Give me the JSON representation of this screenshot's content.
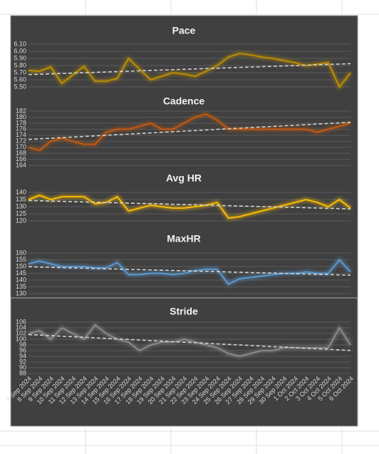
{
  "chart_data": [
    {
      "type": "line",
      "title": "Pace",
      "series": [
        {
          "color": "#bf9000",
          "values": [
            5.73,
            5.72,
            5.78,
            5.55,
            5.67,
            5.79,
            5.58,
            5.58,
            5.62,
            5.9,
            5.75,
            5.6,
            5.65,
            5.7,
            5.68,
            5.65,
            5.72,
            5.8,
            5.92,
            5.97,
            5.95,
            5.92,
            5.9,
            5.87,
            5.84,
            5.8,
            5.82,
            5.84,
            5.5,
            5.7
          ]
        }
      ],
      "ylim": [
        5.5,
        6.1
      ],
      "yticks": [
        {
          "value": 5.5,
          "label": "5.50"
        },
        {
          "value": 5.6,
          "label": "5.60"
        },
        {
          "value": 5.7,
          "label": "5.70"
        },
        {
          "value": 5.8,
          "label": "5.80"
        },
        {
          "value": 5.9,
          "label": "5.90"
        },
        {
          "value": 6.0,
          "label": "6.00"
        },
        {
          "value": 6.1,
          "label": "6.10"
        }
      ],
      "grid": true,
      "trendline": true
    },
    {
      "type": "line",
      "title": "Cadence",
      "series": [
        {
          "color": "#c55a11",
          "values": [
            170,
            169,
            172,
            173,
            172,
            171,
            171,
            175,
            176,
            176,
            177,
            178,
            176,
            176,
            178,
            180,
            181,
            179,
            176,
            176,
            176,
            176,
            176,
            176,
            176,
            176,
            175,
            176,
            177,
            178
          ]
        }
      ],
      "ylim": [
        164,
        182
      ],
      "yticks": [
        164,
        166,
        168,
        170,
        172,
        174,
        176,
        178,
        180,
        182
      ],
      "grid": true,
      "trendline": true
    },
    {
      "type": "line",
      "title": "Avg HR",
      "series": [
        {
          "color": "#ffc000",
          "values": [
            135,
            138,
            135,
            137,
            137,
            137,
            132,
            133,
            137,
            127,
            129,
            131,
            130,
            129,
            129,
            130,
            131,
            133,
            122,
            123,
            125,
            127,
            129,
            131,
            133,
            135,
            133,
            130,
            135,
            129
          ]
        }
      ],
      "ylim": [
        120,
        140
      ],
      "yticks": [
        120,
        125,
        130,
        135,
        140
      ],
      "grid": true,
      "trendline": true
    },
    {
      "type": "line",
      "title": "MaxHR",
      "series": [
        {
          "color": "#5b9bd5",
          "values": [
            152,
            154,
            152,
            150,
            150,
            150,
            149,
            149,
            153,
            144,
            144,
            145,
            145,
            144,
            145,
            147,
            148,
            148,
            137,
            141,
            142,
            143,
            144,
            145,
            145,
            146,
            145,
            145,
            155,
            146
          ]
        }
      ],
      "ylim": [
        130,
        160
      ],
      "yticks": [
        130,
        135,
        140,
        145,
        150,
        155,
        160
      ],
      "grid": true,
      "trendline": true
    },
    {
      "type": "line",
      "title": "Stride",
      "categories": [
        "7 Sep 2024",
        "8 Sep 2024",
        "9 Sep 2024",
        "10 Sep 2024",
        "11 Sep 2024",
        "12 Sep 2024",
        "13 Sep 2024",
        "14 Sep 2024",
        "15 Sep 2024",
        "16 Sep 2024",
        "17 Sep 2024",
        "18 Sep 2024",
        "19 Sep 2024",
        "20 Sep 2024",
        "21 Sep 2024",
        "22 Sep 2024",
        "23 Sep 2024",
        "24 Sep 2024",
        "25 Sep 2024",
        "26 Sep 2024",
        "27 Sep 2024",
        "28 Sep 2024",
        "29 Sep 2024",
        "30 Sep 2024",
        "1 Oct 2024",
        "2 Oct 2024",
        "3 Oct 2024",
        "4 Oct 2024",
        "5 Oct 2024",
        "6 Oct 2024"
      ],
      "series": [
        {
          "color": "#8c8c8c",
          "values": [
            102,
            103,
            100,
            104,
            102,
            100,
            105,
            102,
            100,
            99,
            96,
            98,
            99,
            99,
            100,
            99,
            98,
            97,
            95,
            94,
            95,
            96,
            96,
            97,
            97,
            97,
            97,
            97,
            104,
            98
          ]
        }
      ],
      "ylim": [
        88,
        106
      ],
      "yticks": [
        88,
        90,
        92,
        94,
        96,
        98,
        100,
        102,
        104,
        106
      ],
      "grid": true,
      "trendline": true
    }
  ]
}
